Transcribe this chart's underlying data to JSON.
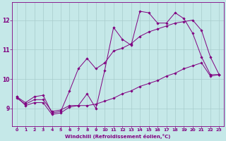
{
  "xlabel": "Windchill (Refroidissement éolien,°C)",
  "ylabel": "",
  "background_color": "#c5e8e8",
  "line_color": "#800080",
  "grid_color": "#a8cccc",
  "xlim": [
    -0.5,
    23.5
  ],
  "ylim": [
    8.4,
    12.6
  ],
  "yticks": [
    9,
    10,
    11,
    12
  ],
  "xticks": [
    0,
    1,
    2,
    3,
    4,
    5,
    6,
    7,
    8,
    9,
    10,
    11,
    12,
    13,
    14,
    15,
    16,
    17,
    18,
    19,
    20,
    21,
    22,
    23
  ],
  "series": [
    [
      9.4,
      9.1,
      9.2,
      9.2,
      8.8,
      8.85,
      9.05,
      9.1,
      9.5,
      9.0,
      10.3,
      11.75,
      11.35,
      11.15,
      12.3,
      12.25,
      11.9,
      11.9,
      12.25,
      12.05,
      11.55,
      10.75,
      10.15,
      10.15
    ],
    [
      9.4,
      9.2,
      9.4,
      9.45,
      8.85,
      8.9,
      9.6,
      10.35,
      10.7,
      10.35,
      10.55,
      10.95,
      11.05,
      11.2,
      11.45,
      11.6,
      11.7,
      11.8,
      11.9,
      11.95,
      12.0,
      11.65,
      10.75,
      10.15
    ],
    [
      9.35,
      9.15,
      9.3,
      9.3,
      8.9,
      8.95,
      9.1,
      9.1,
      9.1,
      9.15,
      9.25,
      9.35,
      9.5,
      9.6,
      9.75,
      9.85,
      9.95,
      10.1,
      10.2,
      10.35,
      10.45,
      10.55,
      10.1,
      10.15
    ]
  ]
}
